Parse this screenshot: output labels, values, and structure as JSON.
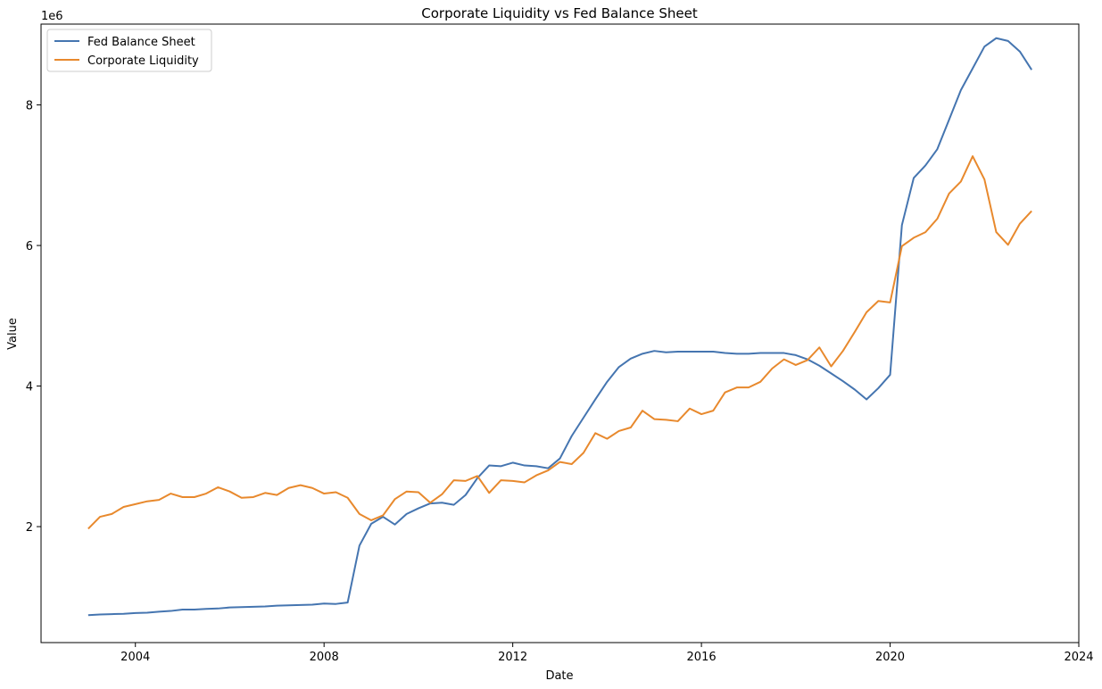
{
  "chart_data": {
    "type": "line",
    "title": "Corporate Liquidity vs Fed Balance Sheet",
    "xlabel": "Date",
    "ylabel": "Value",
    "y_offset_label": "1e6",
    "xlim": [
      2002.0,
      2024.0
    ],
    "ylim": [
      0.35,
      9.15
    ],
    "x_ticks": [
      2004,
      2008,
      2012,
      2016,
      2020,
      2024
    ],
    "x_tick_labels": [
      "2004",
      "2008",
      "2012",
      "2016",
      "2020",
      "2024"
    ],
    "y_ticks": [
      2,
      4,
      6,
      8
    ],
    "y_tick_labels": [
      "2",
      "4",
      "6",
      "8"
    ],
    "grid": false,
    "legend_position": "top-left",
    "x": [
      2003.0,
      2003.25,
      2003.5,
      2003.75,
      2004.0,
      2004.25,
      2004.5,
      2004.75,
      2005.0,
      2005.25,
      2005.5,
      2005.75,
      2006.0,
      2006.25,
      2006.5,
      2006.75,
      2007.0,
      2007.25,
      2007.5,
      2007.75,
      2008.0,
      2008.25,
      2008.5,
      2008.75,
      2009.0,
      2009.25,
      2009.5,
      2009.75,
      2010.0,
      2010.25,
      2010.5,
      2010.75,
      2011.0,
      2011.25,
      2011.5,
      2011.75,
      2012.0,
      2012.25,
      2012.5,
      2012.75,
      2013.0,
      2013.25,
      2013.5,
      2013.75,
      2014.0,
      2014.25,
      2014.5,
      2014.75,
      2015.0,
      2015.25,
      2015.5,
      2015.75,
      2016.0,
      2016.25,
      2016.5,
      2016.75,
      2017.0,
      2017.25,
      2017.5,
      2017.75,
      2018.0,
      2018.25,
      2018.5,
      2018.75,
      2019.0,
      2019.25,
      2019.5,
      2019.75,
      2020.0,
      2020.25,
      2020.5,
      2020.75,
      2021.0,
      2021.25,
      2021.5,
      2021.75,
      2022.0,
      2022.25,
      2022.5,
      2022.75,
      2023.0
    ],
    "series": [
      {
        "name": "Fed Balance Sheet",
        "color": "#4575b0",
        "values": [
          0.74,
          0.75,
          0.755,
          0.76,
          0.77,
          0.775,
          0.79,
          0.8,
          0.82,
          0.82,
          0.83,
          0.835,
          0.85,
          0.855,
          0.86,
          0.865,
          0.875,
          0.88,
          0.885,
          0.89,
          0.905,
          0.9,
          0.92,
          1.73,
          2.04,
          2.14,
          2.03,
          2.18,
          2.26,
          2.33,
          2.34,
          2.31,
          2.45,
          2.69,
          2.87,
          2.86,
          2.91,
          2.87,
          2.86,
          2.83,
          2.97,
          3.29,
          3.55,
          3.81,
          4.06,
          4.27,
          4.39,
          4.46,
          4.5,
          4.48,
          4.49,
          4.49,
          4.49,
          4.49,
          4.47,
          4.46,
          4.46,
          4.47,
          4.47,
          4.47,
          4.44,
          4.38,
          4.29,
          4.18,
          4.07,
          3.95,
          3.81,
          3.97,
          4.16,
          6.29,
          6.96,
          7.14,
          7.37,
          7.79,
          8.21,
          8.52,
          8.83,
          8.95,
          8.91,
          8.76,
          8.5
        ]
      },
      {
        "name": "Corporate Liquidity",
        "color": "#e8892d",
        "values": [
          1.97,
          2.14,
          2.18,
          2.28,
          2.32,
          2.36,
          2.38,
          2.47,
          2.42,
          2.42,
          2.47,
          2.56,
          2.5,
          2.41,
          2.42,
          2.48,
          2.45,
          2.55,
          2.59,
          2.55,
          2.47,
          2.49,
          2.41,
          2.18,
          2.09,
          2.16,
          2.39,
          2.5,
          2.49,
          2.34,
          2.46,
          2.66,
          2.65,
          2.72,
          2.48,
          2.66,
          2.65,
          2.63,
          2.73,
          2.8,
          2.92,
          2.89,
          3.05,
          3.33,
          3.25,
          3.36,
          3.41,
          3.65,
          3.53,
          3.52,
          3.5,
          3.68,
          3.6,
          3.65,
          3.91,
          3.98,
          3.98,
          4.06,
          4.25,
          4.38,
          4.3,
          4.37,
          4.55,
          4.28,
          4.5,
          4.77,
          5.05,
          5.21,
          5.19,
          5.99,
          6.11,
          6.19,
          6.38,
          6.74,
          6.91,
          7.27,
          6.94,
          6.19,
          6.01,
          6.31,
          6.49
        ]
      }
    ]
  }
}
